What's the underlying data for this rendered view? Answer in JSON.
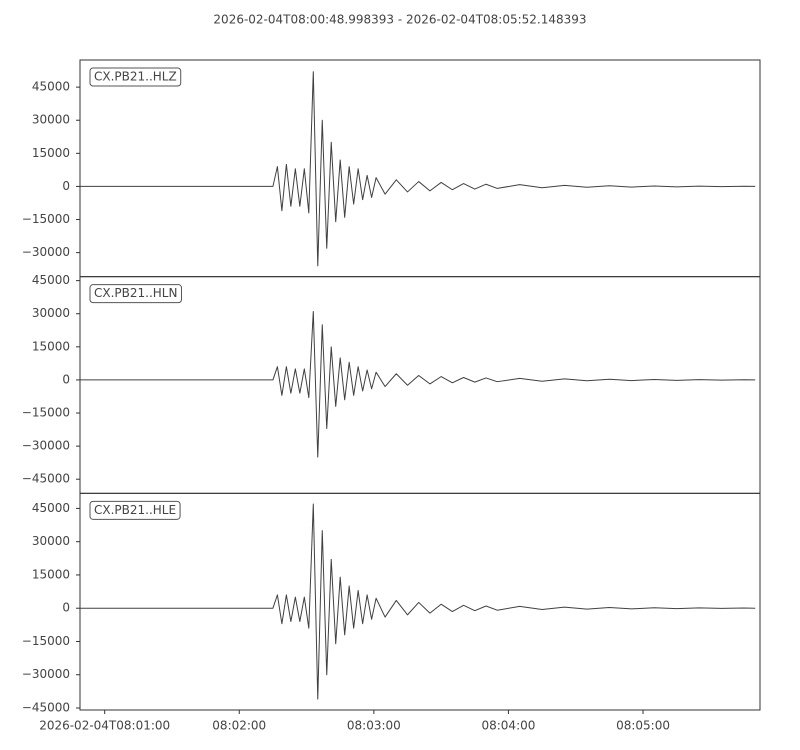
{
  "title": "2026-02-04T08:00:48.998393  -  2026-02-04T08:05:52.148393",
  "chart_data": [
    {
      "type": "line",
      "label": "CX.PB21..HLZ",
      "color": "#404040",
      "x": [
        "08:00:49",
        "08:01:30",
        "08:02:15",
        "08:02:17",
        "08:02:19",
        "08:02:21",
        "08:02:23",
        "08:02:25",
        "08:02:27",
        "08:02:29",
        "08:02:31",
        "08:02:33",
        "08:02:35",
        "08:02:37",
        "08:02:39",
        "08:02:41",
        "08:02:43",
        "08:02:45",
        "08:02:47",
        "08:02:49",
        "08:02:51",
        "08:02:53",
        "08:02:55",
        "08:02:57",
        "08:02:59",
        "08:03:01",
        "08:03:05",
        "08:03:10",
        "08:03:15",
        "08:03:20",
        "08:03:25",
        "08:03:30",
        "08:03:35",
        "08:03:40",
        "08:03:45",
        "08:03:50",
        "08:03:55",
        "08:04:05",
        "08:04:15",
        "08:04:25",
        "08:04:35",
        "08:04:45",
        "08:04:55",
        "08:05:05",
        "08:05:15",
        "08:05:25",
        "08:05:35",
        "08:05:45",
        "08:05:50"
      ],
      "values": [
        0,
        0,
        0,
        9000,
        -11000,
        10000,
        -9000,
        8000,
        -9000,
        8000,
        -12000,
        52000,
        -36000,
        30000,
        -28000,
        20000,
        -16000,
        12000,
        -14000,
        9000,
        -8000,
        8000,
        -6000,
        5000,
        -5000,
        4000,
        -3500,
        3000,
        -2500,
        2200,
        -2000,
        1800,
        -1500,
        1300,
        -1200,
        1000,
        -900,
        800,
        -600,
        500,
        -400,
        300,
        -300,
        200,
        -200,
        150,
        -100,
        100,
        0
      ],
      "xlim": [
        "08:00:48.998393",
        "08:05:52.148393"
      ],
      "ylim": [
        -40900,
        57300
      ],
      "yticks": [
        {
          "value": -30000,
          "label": "−30000"
        },
        {
          "value": -15000,
          "label": "−15000"
        },
        0,
        15000,
        30000,
        45000
      ]
    },
    {
      "type": "line",
      "label": "CX.PB21..HLN",
      "color": "#404040",
      "x": [
        "08:00:49",
        "08:01:30",
        "08:02:15",
        "08:02:17",
        "08:02:19",
        "08:02:21",
        "08:02:23",
        "08:02:25",
        "08:02:27",
        "08:02:29",
        "08:02:31",
        "08:02:33",
        "08:02:35",
        "08:02:37",
        "08:02:39",
        "08:02:41",
        "08:02:43",
        "08:02:45",
        "08:02:47",
        "08:02:49",
        "08:02:51",
        "08:02:53",
        "08:02:55",
        "08:02:57",
        "08:02:59",
        "08:03:01",
        "08:03:05",
        "08:03:10",
        "08:03:15",
        "08:03:20",
        "08:03:25",
        "08:03:30",
        "08:03:35",
        "08:03:40",
        "08:03:45",
        "08:03:50",
        "08:03:55",
        "08:04:05",
        "08:04:15",
        "08:04:25",
        "08:04:35",
        "08:04:45",
        "08:04:55",
        "08:05:05",
        "08:05:15",
        "08:05:25",
        "08:05:35",
        "08:05:45",
        "08:05:50"
      ],
      "values": [
        0,
        0,
        0,
        6000,
        -7000,
        6000,
        -6000,
        5000,
        -6000,
        5000,
        -8000,
        31000,
        -35000,
        25000,
        -22000,
        15000,
        -12000,
        10000,
        -9000,
        8000,
        -7000,
        6000,
        -5000,
        4500,
        -4000,
        3500,
        -3000,
        2800,
        -2400,
        2000,
        -1800,
        1500,
        -1300,
        1100,
        -1000,
        900,
        -800,
        700,
        -600,
        500,
        -400,
        300,
        -300,
        200,
        -200,
        150,
        -100,
        100,
        0
      ],
      "xlim": [
        "08:00:48.998393",
        "08:05:52.148393"
      ],
      "ylim": [
        -51400,
        46800
      ],
      "yticks": [
        {
          "value": -45000,
          "label": "−45000"
        },
        {
          "value": -30000,
          "label": "−30000"
        },
        {
          "value": -15000,
          "label": "−15000"
        },
        0,
        15000,
        30000,
        45000
      ]
    },
    {
      "type": "line",
      "label": "CX.PB21..HLE",
      "color": "#404040",
      "x": [
        "08:00:49",
        "08:01:30",
        "08:02:15",
        "08:02:17",
        "08:02:19",
        "08:02:21",
        "08:02:23",
        "08:02:25",
        "08:02:27",
        "08:02:29",
        "08:02:31",
        "08:02:33",
        "08:02:35",
        "08:02:37",
        "08:02:39",
        "08:02:41",
        "08:02:43",
        "08:02:45",
        "08:02:47",
        "08:02:49",
        "08:02:51",
        "08:02:53",
        "08:02:55",
        "08:02:57",
        "08:02:59",
        "08:03:01",
        "08:03:05",
        "08:03:10",
        "08:03:15",
        "08:03:20",
        "08:03:25",
        "08:03:30",
        "08:03:35",
        "08:03:40",
        "08:03:45",
        "08:03:50",
        "08:03:55",
        "08:04:05",
        "08:04:15",
        "08:04:25",
        "08:04:35",
        "08:04:45",
        "08:04:55",
        "08:05:05",
        "08:05:15",
        "08:05:25",
        "08:05:35",
        "08:05:45",
        "08:05:50"
      ],
      "values": [
        0,
        0,
        0,
        6000,
        -7000,
        6000,
        -6000,
        5000,
        -6000,
        5000,
        -9000,
        47000,
        -41000,
        35000,
        -30000,
        22000,
        -16000,
        14000,
        -12000,
        10000,
        -9000,
        8000,
        -7000,
        6000,
        -5000,
        4500,
        -4000,
        3500,
        -3000,
        2600,
        -2200,
        1800,
        -1500,
        1300,
        -1100,
        1000,
        -900,
        800,
        -600,
        500,
        -400,
        300,
        -300,
        200,
        -200,
        150,
        -100,
        100,
        0
      ],
      "xlim": [
        "08:00:48.998393",
        "08:05:52.148393"
      ],
      "ylim": [
        -45900,
        51800
      ],
      "yticks": [
        {
          "value": -45000,
          "label": "−45000"
        },
        {
          "value": -30000,
          "label": "−30000"
        },
        {
          "value": -15000,
          "label": "−15000"
        },
        0,
        15000,
        30000,
        45000
      ],
      "xticks": [
        {
          "value": "08:01:00",
          "label": "2026-02-04T08:01:00"
        },
        "08:02:00",
        "08:03:00",
        "08:04:00",
        "08:05:00"
      ]
    }
  ]
}
